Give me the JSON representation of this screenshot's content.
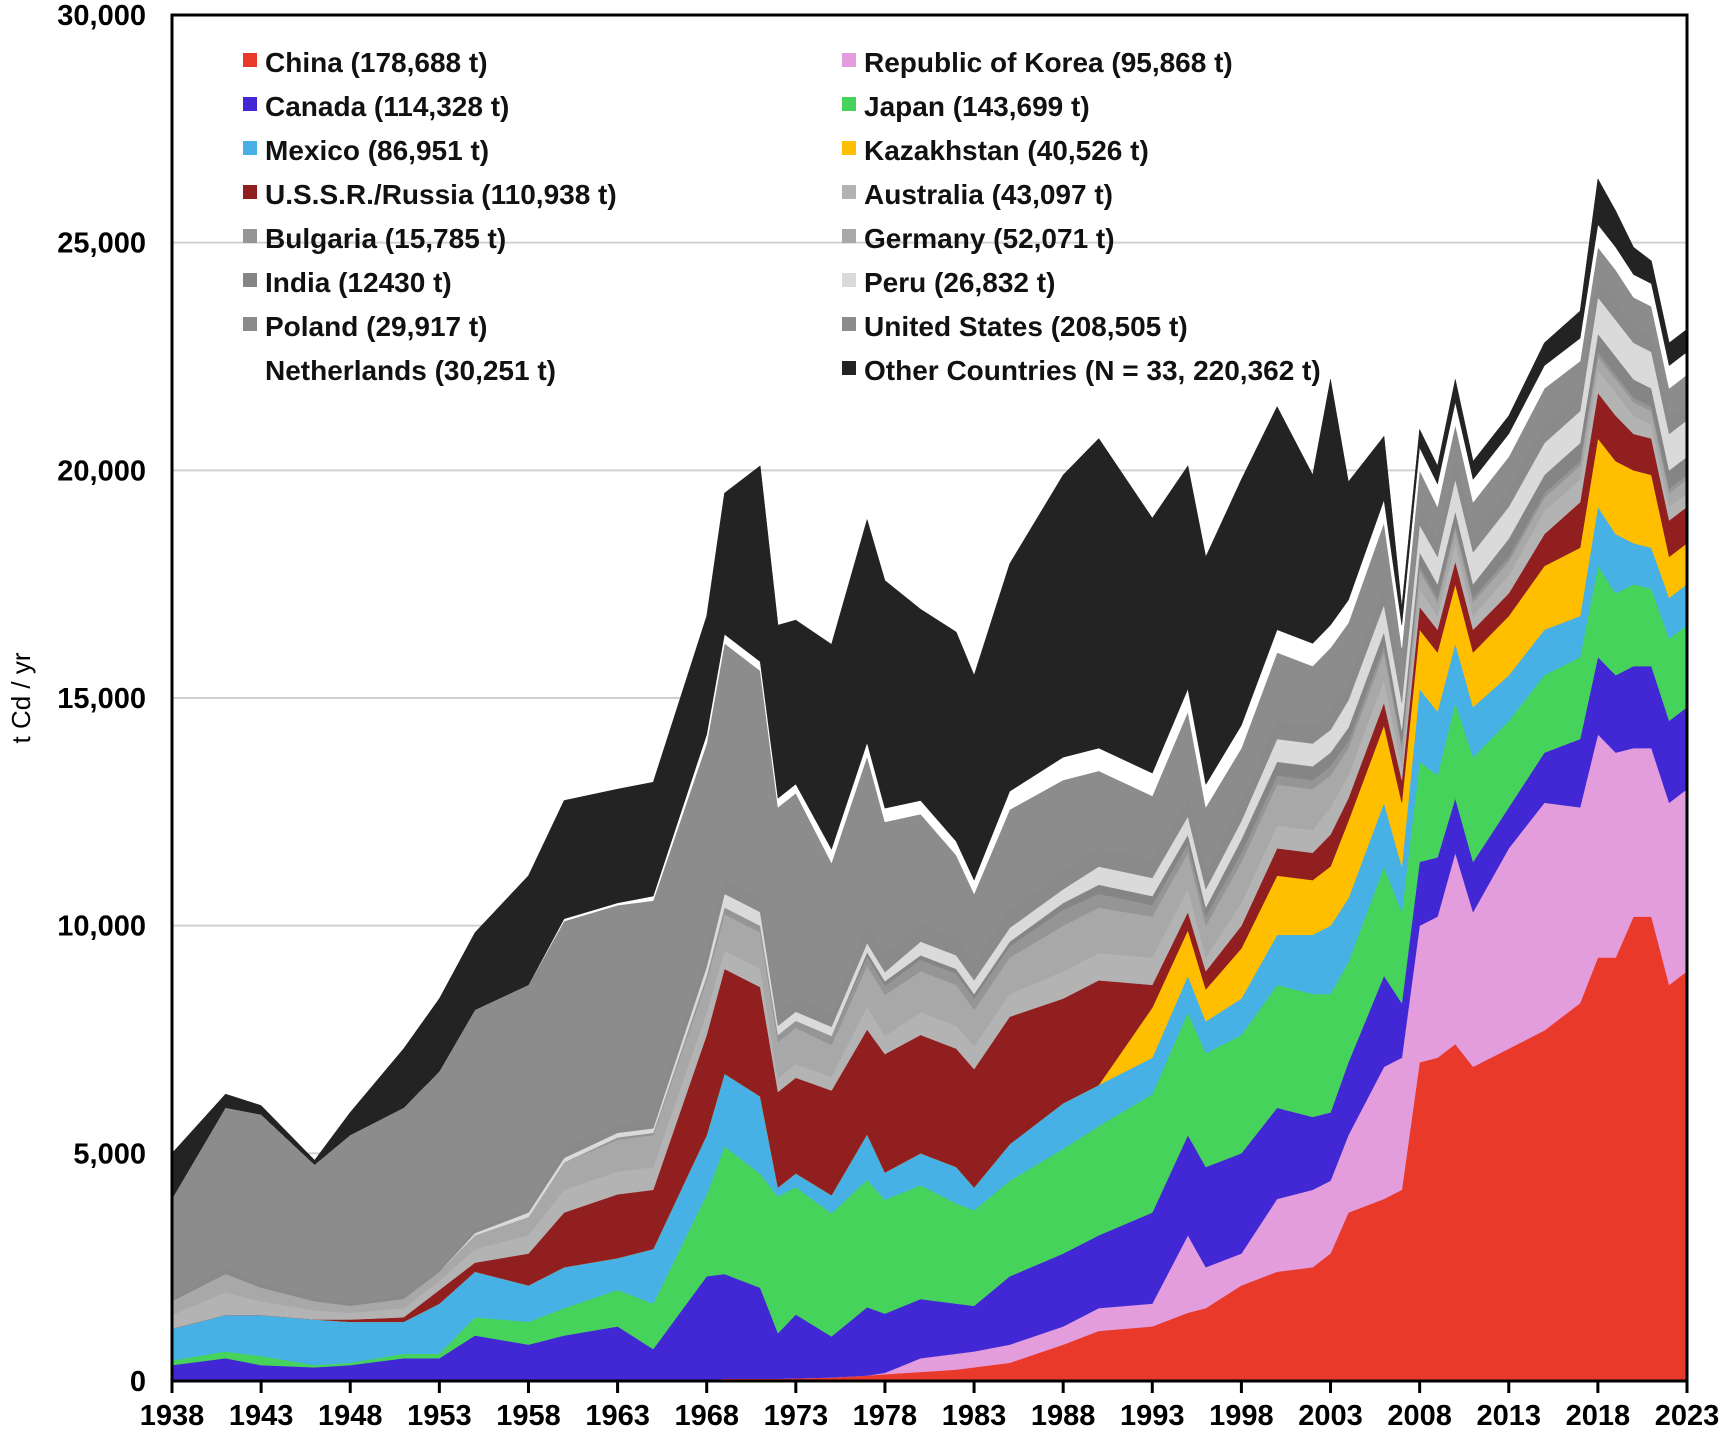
{
  "chart_data": {
    "type": "area",
    "stacked": true,
    "title": "",
    "xlabel": "",
    "ylabel": "t Cd / yr",
    "xlim": [
      1938,
      2023
    ],
    "ylim": [
      0,
      30000
    ],
    "grid": true,
    "legend_placement": "top-left (two columns, inside plot)",
    "x_ticks": [
      "1938",
      "1943",
      "1948",
      "1953",
      "1958",
      "1963",
      "1968",
      "1973",
      "1978",
      "1983",
      "1988",
      "1993",
      "1998",
      "2003",
      "2008",
      "2013",
      "2018",
      "2023"
    ],
    "y_ticks": [
      "0",
      "5,000",
      "10,000",
      "15,000",
      "20,000",
      "25,000",
      "30,000"
    ],
    "y_tick_values": [
      0,
      5000,
      10000,
      15000,
      20000,
      25000,
      30000
    ],
    "x": [
      1938,
      1941,
      1943,
      1946,
      1948,
      1951,
      1953,
      1955,
      1958,
      1960,
      1963,
      1965,
      1968,
      1969,
      1971,
      1972,
      1973,
      1975,
      1977,
      1978,
      1980,
      1982,
      1983,
      1985,
      1988,
      1990,
      1993,
      1995,
      1996,
      1998,
      2000,
      2002,
      2003,
      2004,
      2006,
      2007,
      2008,
      2009,
      2010,
      2011,
      2013,
      2015,
      2017,
      2018,
      2019,
      2020,
      2021,
      2022,
      2023
    ],
    "stack_order": "bottom-to-top as listed in series",
    "series": [
      {
        "name": "China",
        "total": "178,688 t",
        "color": "#e8392a",
        "values": [
          0,
          0,
          0,
          0,
          0,
          0,
          0,
          0,
          0,
          0,
          0,
          0,
          0,
          50,
          50,
          50,
          60,
          80,
          120,
          150,
          200,
          250,
          300,
          400,
          800,
          1100,
          1200,
          1500,
          1600,
          2100,
          2400,
          2500,
          2800,
          3700,
          4000,
          4200,
          7000,
          7100,
          7400,
          6900,
          7300,
          7700,
          8300,
          9300,
          9300,
          10200,
          10200,
          8700,
          9000
        ]
      },
      {
        "name": "Republic of Korea",
        "total": "95,868 t",
        "color": "#e39ddc",
        "values": [
          0,
          0,
          0,
          0,
          0,
          0,
          0,
          0,
          0,
          0,
          0,
          0,
          0,
          0,
          0,
          0,
          0,
          0,
          0,
          30,
          300,
          350,
          350,
          400,
          400,
          500,
          500,
          1700,
          900,
          700,
          1600,
          1700,
          1600,
          1700,
          2900,
          2900,
          3000,
          3100,
          4200,
          3400,
          4400,
          5000,
          4300,
          4900,
          4500,
          3700,
          3700,
          4000,
          4000
        ]
      },
      {
        "name": "Canada",
        "total": "114,328 t",
        "color": "#4228d4",
        "values": [
          350,
          500,
          350,
          300,
          350,
          500,
          500,
          1000,
          800,
          1000,
          1200,
          700,
          2300,
          2300,
          2000,
          1000,
          1400,
          900,
          1500,
          1300,
          1300,
          1100,
          1000,
          1500,
          1600,
          1600,
          2000,
          2200,
          2200,
          2200,
          2000,
          1600,
          1500,
          1600,
          2000,
          1200,
          1400,
          1300,
          1200,
          1100,
          900,
          1100,
          1500,
          1700,
          1700,
          1800,
          1800,
          1800,
          1800
        ]
      },
      {
        "name": "Japan",
        "total": "143,699 t",
        "color": "#46d35c",
        "values": [
          100,
          150,
          200,
          50,
          50,
          100,
          100,
          400,
          500,
          600,
          800,
          1000,
          1800,
          2800,
          2500,
          3000,
          2800,
          2700,
          2800,
          2500,
          2500,
          2200,
          2100,
          2100,
          2300,
          2400,
          2600,
          2700,
          2500,
          2600,
          2700,
          2700,
          2600,
          2200,
          2400,
          2000,
          2200,
          1800,
          2100,
          2300,
          1900,
          1700,
          1800,
          2000,
          1800,
          1800,
          1700,
          1800,
          1800
        ]
      },
      {
        "name": "Mexico",
        "total": "86,951 t",
        "color": "#47b0e4",
        "values": [
          700,
          800,
          900,
          1000,
          900,
          700,
          1100,
          1000,
          800,
          900,
          700,
          1200,
          1300,
          1600,
          1700,
          200,
          300,
          400,
          1000,
          600,
          700,
          800,
          500,
          800,
          1000,
          900,
          800,
          800,
          700,
          800,
          1100,
          1300,
          1500,
          1400,
          1400,
          1000,
          1600,
          1400,
          1300,
          1100,
          1000,
          1000,
          900,
          1300,
          1300,
          900,
          900,
          900,
          900
        ]
      },
      {
        "name": "Kazakhstan",
        "total": "40,526 t",
        "color": "#ffbf00",
        "values": [
          0,
          0,
          0,
          0,
          0,
          0,
          0,
          0,
          0,
          0,
          0,
          0,
          0,
          0,
          0,
          0,
          0,
          0,
          0,
          0,
          0,
          0,
          0,
          0,
          0,
          0,
          1100,
          1000,
          700,
          1100,
          1300,
          1200,
          1300,
          1700,
          1700,
          1400,
          1300,
          1300,
          1300,
          1200,
          1300,
          1400,
          1500,
          1500,
          1600,
          1600,
          1600,
          900,
          900
        ]
      },
      {
        "name": "U.S.S.R./Russia",
        "total": "110,938 t",
        "color": "#921f1f",
        "values": [
          0,
          0,
          0,
          0,
          50,
          100,
          300,
          200,
          700,
          1200,
          1400,
          1300,
          2200,
          2300,
          2400,
          2100,
          2100,
          2300,
          2300,
          2600,
          2600,
          2600,
          2600,
          2800,
          2300,
          2300,
          500,
          400,
          400,
          500,
          600,
          600,
          700,
          500,
          500,
          500,
          500,
          500,
          500,
          500,
          500,
          700,
          1000,
          1000,
          1000,
          800,
          800,
          800,
          800
        ]
      },
      {
        "name": "Australia",
        "total": "43,097 t",
        "color": "#b3b3b3",
        "values": [
          300,
          500,
          300,
          200,
          150,
          200,
          200,
          300,
          400,
          500,
          500,
          500,
          500,
          400,
          400,
          300,
          300,
          300,
          500,
          400,
          500,
          500,
          500,
          500,
          600,
          600,
          600,
          500,
          300,
          500,
          500,
          500,
          600,
          500,
          500,
          300,
          400,
          300,
          400,
          300,
          400,
          500,
          500,
          500,
          500,
          400,
          300,
          300,
          300
        ]
      },
      {
        "name": "Germany",
        "total": "52,071 t",
        "color": "#a8a8a8",
        "values": [
          300,
          400,
          300,
          200,
          150,
          200,
          200,
          300,
          400,
          600,
          700,
          700,
          700,
          800,
          800,
          800,
          800,
          700,
          900,
          900,
          900,
          900,
          800,
          800,
          1000,
          1000,
          900,
          800,
          700,
          900,
          900,
          900,
          700,
          600,
          600,
          400,
          400,
          300,
          300,
          300,
          300,
          300,
          300,
          300,
          300,
          300,
          300,
          300,
          300
        ]
      },
      {
        "name": "Bulgaria",
        "total": "15,785 t",
        "color": "#959595",
        "values": [
          0,
          0,
          0,
          0,
          0,
          0,
          0,
          0,
          0,
          0,
          50,
          50,
          100,
          150,
          150,
          150,
          150,
          200,
          200,
          200,
          250,
          250,
          250,
          250,
          350,
          300,
          250,
          200,
          200,
          200,
          200,
          200,
          200,
          150,
          150,
          100,
          100,
          100,
          100,
          100,
          100,
          100,
          100,
          100,
          100,
          100,
          100,
          100,
          100
        ]
      },
      {
        "name": "India",
        "total": "12430 t",
        "color": "#858585",
        "values": [
          0,
          0,
          0,
          0,
          0,
          0,
          0,
          0,
          0,
          0,
          0,
          0,
          0,
          0,
          0,
          0,
          0,
          0,
          100,
          100,
          100,
          100,
          100,
          100,
          150,
          200,
          200,
          200,
          200,
          300,
          300,
          300,
          300,
          300,
          300,
          300,
          300,
          300,
          300,
          300,
          400,
          400,
          400,
          400,
          400,
          400,
          400,
          400,
          400
        ]
      },
      {
        "name": "Peru",
        "total": "26,832 t",
        "color": "#dadada",
        "values": [
          0,
          0,
          0,
          0,
          0,
          0,
          0,
          50,
          100,
          100,
          100,
          100,
          200,
          300,
          300,
          200,
          200,
          200,
          200,
          200,
          300,
          300,
          300,
          300,
          300,
          400,
          400,
          400,
          400,
          400,
          500,
          500,
          500,
          600,
          600,
          600,
          600,
          600,
          700,
          700,
          700,
          700,
          700,
          800,
          800,
          800,
          800,
          800,
          800
        ]
      },
      {
        "name": "Poland",
        "total": "29,917 t",
        "color": "#8a8a8a",
        "values": [
          50,
          150,
          100,
          100,
          50,
          100,
          100,
          100,
          100,
          200,
          200,
          200,
          300,
          300,
          300,
          300,
          300,
          300,
          400,
          400,
          400,
          400,
          400,
          400,
          400,
          400,
          400,
          400,
          400,
          400,
          400,
          400,
          400,
          400,
          400,
          400,
          400,
          400,
          400,
          400,
          400,
          400,
          400,
          400,
          400,
          400,
          400,
          400,
          400
        ]
      },
      {
        "name": "United States",
        "total": "208,505 t",
        "color": "#8c8c8c",
        "values": [
          2200,
          3500,
          3700,
          2900,
          3700,
          4100,
          4300,
          4800,
          4900,
          5000,
          4800,
          4800,
          4600,
          5200,
          5000,
          4500,
          4500,
          3300,
          3700,
          2900,
          2400,
          1800,
          1500,
          2200,
          2000,
          1700,
          1400,
          1900,
          1400,
          1200,
          1500,
          1300,
          1400,
          1300,
          1400,
          800,
          800,
          700,
          800,
          700,
          700,
          800,
          700,
          700,
          700,
          600,
          600,
          600,
          600
        ]
      },
      {
        "name": "Netherlands",
        "total": "30,251 t",
        "color": "#ffffff",
        "values": [
          0,
          0,
          0,
          0,
          0,
          0,
          0,
          0,
          0,
          50,
          50,
          100,
          200,
          200,
          200,
          200,
          200,
          300,
          300,
          300,
          300,
          300,
          300,
          400,
          500,
          500,
          500,
          500,
          500,
          500,
          500,
          500,
          500,
          500,
          500,
          500,
          500,
          500,
          500,
          500,
          500,
          500,
          500,
          500,
          500,
          500,
          500,
          500,
          500
        ]
      },
      {
        "name": "Other Countries",
        "total": "N = 33, 220,362 t",
        "color": "#232323",
        "values": [
          1000,
          300,
          200,
          100,
          500,
          1300,
          1600,
          1700,
          2400,
          2600,
          2500,
          2500,
          2600,
          3100,
          4300,
          3800,
          3600,
          4500,
          4900,
          5000,
          4200,
          4600,
          4500,
          5000,
          6200,
          6800,
          5600,
          4900,
          5000,
          5400,
          4900,
          3700,
          5400,
          2600,
          1400,
          400,
          400,
          400,
          500,
          400,
          400,
          500,
          600,
          1000,
          800,
          600,
          500,
          500,
          500
        ]
      }
    ]
  },
  "legend": {
    "left": [
      {
        "label": "China (178,688 t)",
        "color": "#e8392a"
      },
      {
        "label": "Canada (114,328 t)",
        "color": "#4228d4"
      },
      {
        "label": "Mexico (86,951 t)",
        "color": "#47b0e4"
      },
      {
        "label": "U.S.S.R./Russia (110,938 t)",
        "color": "#921f1f"
      },
      {
        "label": "Bulgaria (15,785 t)",
        "color": "#959595"
      },
      {
        "label": "India (12430 t)",
        "color": "#858585"
      },
      {
        "label": "Poland (29,917 t)",
        "color": "#8a8a8a"
      },
      {
        "label": "Netherlands (30,251 t)",
        "color": "#ffffff"
      }
    ],
    "right": [
      {
        "label": "Republic of Korea (95,868 t)",
        "color": "#e39ddc"
      },
      {
        "label": "Japan (143,699 t)",
        "color": "#46d35c"
      },
      {
        "label": "Kazakhstan (40,526 t)",
        "color": "#ffbf00"
      },
      {
        "label": "Australia (43,097 t)",
        "color": "#b3b3b3"
      },
      {
        "label": "Germany (52,071 t)",
        "color": "#a8a8a8"
      },
      {
        "label": "Peru (26,832 t)",
        "color": "#dadada"
      },
      {
        "label": "United States (208,505 t)",
        "color": "#8c8c8c"
      },
      {
        "label": "Other Countries (N = 33, 220,362 t)",
        "color": "#232323"
      }
    ]
  }
}
